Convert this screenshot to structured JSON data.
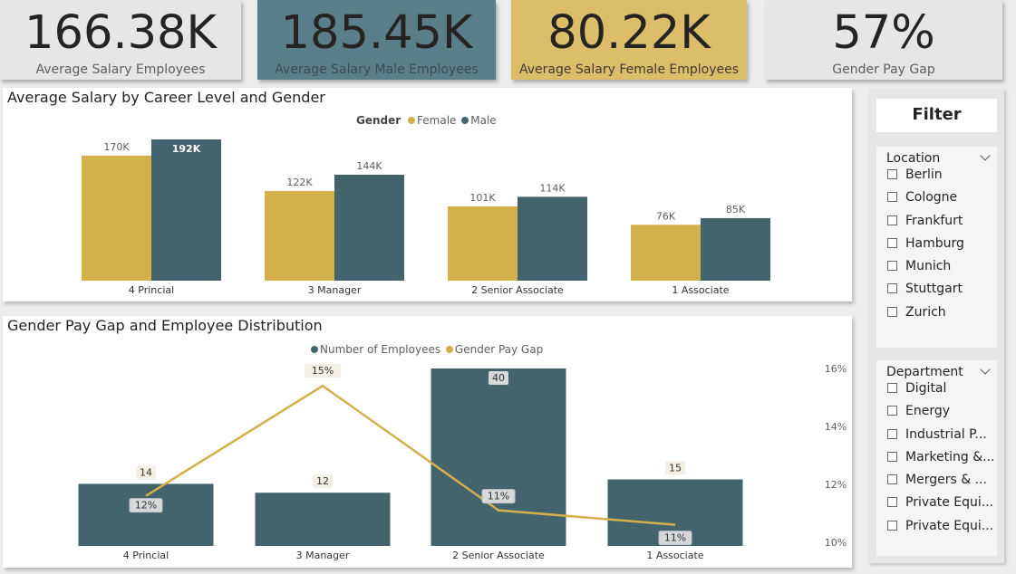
{
  "kpis": [
    {
      "value": "166.38K",
      "label": "Average Salary Employees",
      "bg": "#e6e6e6",
      "label_color": "#605e5c"
    },
    {
      "value": "185.45K",
      "label": "Average Salary Male Employees",
      "bg": "#5b7f8a",
      "label_color": "#404a50"
    },
    {
      "value": "80.22K",
      "label": "Average Salary Female Employees",
      "bg": "#dcbd6a",
      "label_color": "#3e3a30"
    },
    {
      "value": "57%",
      "label": "Gender Pay Gap",
      "bg": "#e6e6e6",
      "label_color": "#605e5c"
    }
  ],
  "salary_chart": {
    "title": "Average Salary by Career Level and Gender",
    "legend_title": "Gender",
    "legend": [
      "Female",
      "Male"
    ]
  },
  "gap_chart": {
    "title": "Gender Pay Gap and Employee Distribution",
    "legend": [
      "Number of Employees",
      "Gender Pay Gap"
    ]
  },
  "colors": {
    "female": "#d4b04a",
    "male": "#44646d",
    "gap_line": "#d4b04a"
  },
  "chart_data": [
    {
      "type": "bar",
      "title": "Average Salary by Career Level and Gender",
      "categories": [
        "4 Princial",
        "3 Manager",
        "2 Senior Associate",
        "1 Associate"
      ],
      "series": [
        {
          "name": "Female",
          "values": [
            170,
            122,
            101,
            76
          ],
          "labels": [
            "170K",
            "122K",
            "101K",
            "76K"
          ]
        },
        {
          "name": "Male",
          "values": [
            192,
            144,
            114,
            85
          ],
          "labels": [
            "192K",
            "144K",
            "114K",
            "85K"
          ]
        }
      ],
      "units": "K",
      "ylim": [
        0,
        192
      ]
    },
    {
      "type": "bar",
      "title": "Gender Pay Gap and Employee Distribution",
      "categories": [
        "4 Princial",
        "3 Manager",
        "2 Senior Associate",
        "1 Associate"
      ],
      "series": [
        {
          "name": "Number of Employees",
          "type": "bar",
          "values": [
            14,
            12,
            40,
            15
          ],
          "labels": [
            "14",
            "12",
            "40",
            "15"
          ]
        },
        {
          "name": "Gender Pay Gap",
          "type": "line",
          "values": [
            11.6,
            15.4,
            11.1,
            10.6
          ],
          "labels": [
            "12%",
            "15%",
            "11%",
            "11%"
          ]
        }
      ],
      "ylim_bar": [
        0,
        40
      ],
      "y2_ticks": [
        "16%",
        "14%",
        "12%",
        "10%"
      ],
      "y2_tick_values": [
        16,
        14,
        12,
        10
      ],
      "y2lim": [
        9.9,
        16
      ]
    }
  ],
  "filter": {
    "title": "Filter",
    "location": {
      "label": "Location",
      "items": [
        "Berlin",
        "Cologne",
        "Frankfurt",
        "Hamburg",
        "Munich",
        "Stuttgart",
        "Zurich"
      ]
    },
    "department": {
      "label": "Department",
      "items": [
        "Digital",
        "Energy",
        "Industrial P...",
        "Marketing &...",
        "Mergers & ...",
        "Private Equi...",
        "Private Equi..."
      ]
    }
  }
}
